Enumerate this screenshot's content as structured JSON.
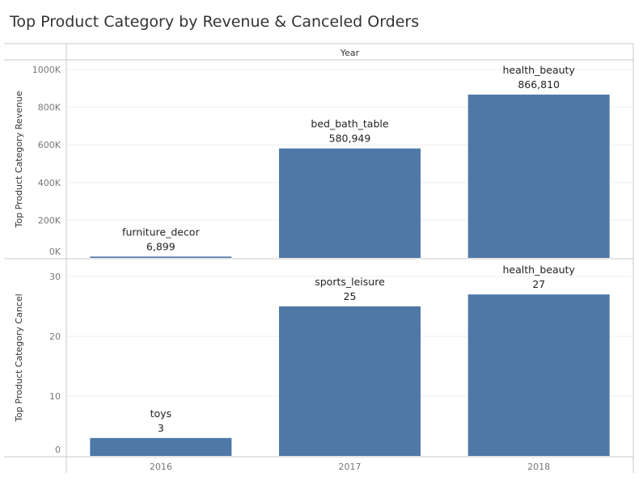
{
  "title": "Top Product Category by Revenue & Canceled Orders",
  "colors": {
    "bar": "#4e79a7",
    "axis": "#c8c8c8",
    "grid": "#efefef",
    "text": "#333333",
    "tick": "#777777"
  },
  "chart_data": {
    "type": "bar",
    "column_header": "Year",
    "categories": [
      "2016",
      "2017",
      "2018"
    ],
    "grid": true,
    "panels": [
      {
        "ylabel": "Top Product Category Revenue",
        "ylim": [
          0,
          1050000
        ],
        "yticks": [
          0,
          200000,
          400000,
          600000,
          800000,
          1000000
        ],
        "ytick_labels": [
          "0K",
          "200K",
          "400K",
          "600K",
          "800K",
          "1000K"
        ],
        "values": [
          6899,
          580949,
          866810
        ],
        "value_labels": [
          "6,899",
          "580,949",
          "866,810"
        ],
        "category_labels": [
          "furniture_decor",
          "bed_bath_table",
          "health_beauty"
        ]
      },
      {
        "ylabel": "Top Product Category Cancel",
        "ylim": [
          0,
          33
        ],
        "yticks": [
          0,
          10,
          20,
          30
        ],
        "ytick_labels": [
          "0",
          "10",
          "20",
          "30"
        ],
        "values": [
          3,
          25,
          27
        ],
        "value_labels": [
          "3",
          "25",
          "27"
        ],
        "category_labels": [
          "toys",
          "sports_leisure",
          "health_beauty"
        ]
      }
    ]
  }
}
